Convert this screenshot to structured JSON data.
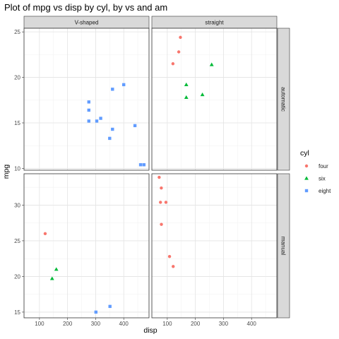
{
  "chart_data": {
    "type": "scatter",
    "title": "Plot of mpg vs disp by cyl, by vs and am",
    "xlabel": "disp",
    "ylabel": "mpg",
    "xlim": [
      45,
      490
    ],
    "x_ticks": [
      100,
      200,
      300,
      400
    ],
    "grid": true,
    "facet_cols": [
      "V-shaped",
      "straight"
    ],
    "facet_rows": [
      "automatic",
      "manual"
    ],
    "row_ylim": [
      [
        9.8,
        25.4
      ],
      [
        14.2,
        34.4
      ]
    ],
    "row_yticks": [
      [
        10,
        15,
        20,
        25
      ],
      [
        15,
        20,
        25,
        30
      ]
    ],
    "legend": {
      "title": "cyl",
      "placement": "right",
      "entries": [
        {
          "label": "four",
          "color": "#F8766D",
          "shape": "circle"
        },
        {
          "label": "six",
          "color": "#00BA38",
          "shape": "triangle"
        },
        {
          "label": "eight",
          "color": "#619CFF",
          "shape": "square"
        }
      ]
    },
    "panels": [
      {
        "row": 0,
        "col": 0,
        "points": [
          {
            "x": 360,
            "y": 18.7,
            "cyl": "eight"
          },
          {
            "x": 360,
            "y": 14.3,
            "cyl": "eight"
          },
          {
            "x": 275.8,
            "y": 16.4,
            "cyl": "eight"
          },
          {
            "x": 275.8,
            "y": 17.3,
            "cyl": "eight"
          },
          {
            "x": 275.8,
            "y": 15.2,
            "cyl": "eight"
          },
          {
            "x": 472,
            "y": 10.4,
            "cyl": "eight"
          },
          {
            "x": 460,
            "y": 10.4,
            "cyl": "eight"
          },
          {
            "x": 440,
            "y": 14.7,
            "cyl": "eight"
          },
          {
            "x": 318,
            "y": 15.5,
            "cyl": "eight"
          },
          {
            "x": 304,
            "y": 15.2,
            "cyl": "eight"
          },
          {
            "x": 350,
            "y": 13.3,
            "cyl": "eight"
          },
          {
            "x": 400,
            "y": 19.2,
            "cyl": "eight"
          }
        ]
      },
      {
        "row": 0,
        "col": 1,
        "points": [
          {
            "x": 258,
            "y": 21.4,
            "cyl": "six"
          },
          {
            "x": 225,
            "y": 18.1,
            "cyl": "six"
          },
          {
            "x": 167.6,
            "y": 19.2,
            "cyl": "six"
          },
          {
            "x": 167.6,
            "y": 17.8,
            "cyl": "six"
          },
          {
            "x": 146.7,
            "y": 24.4,
            "cyl": "four"
          },
          {
            "x": 140.8,
            "y": 22.8,
            "cyl": "four"
          },
          {
            "x": 120.1,
            "y": 21.5,
            "cyl": "four"
          }
        ]
      },
      {
        "row": 1,
        "col": 0,
        "points": [
          {
            "x": 160,
            "y": 21.0,
            "cyl": "six"
          },
          {
            "x": 145,
            "y": 19.7,
            "cyl": "six"
          },
          {
            "x": 120.3,
            "y": 26.0,
            "cyl": "four"
          },
          {
            "x": 351,
            "y": 15.8,
            "cyl": "eight"
          },
          {
            "x": 301,
            "y": 15.0,
            "cyl": "eight"
          }
        ]
      },
      {
        "row": 1,
        "col": 1,
        "points": [
          {
            "x": 108,
            "y": 22.8,
            "cyl": "four"
          },
          {
            "x": 78.7,
            "y": 32.4,
            "cyl": "four"
          },
          {
            "x": 75.7,
            "y": 30.4,
            "cyl": "four"
          },
          {
            "x": 71.1,
            "y": 33.9,
            "cyl": "four"
          },
          {
            "x": 79,
            "y": 27.3,
            "cyl": "four"
          },
          {
            "x": 95.1,
            "y": 30.4,
            "cyl": "four"
          },
          {
            "x": 121,
            "y": 21.4,
            "cyl": "four"
          }
        ]
      }
    ]
  }
}
